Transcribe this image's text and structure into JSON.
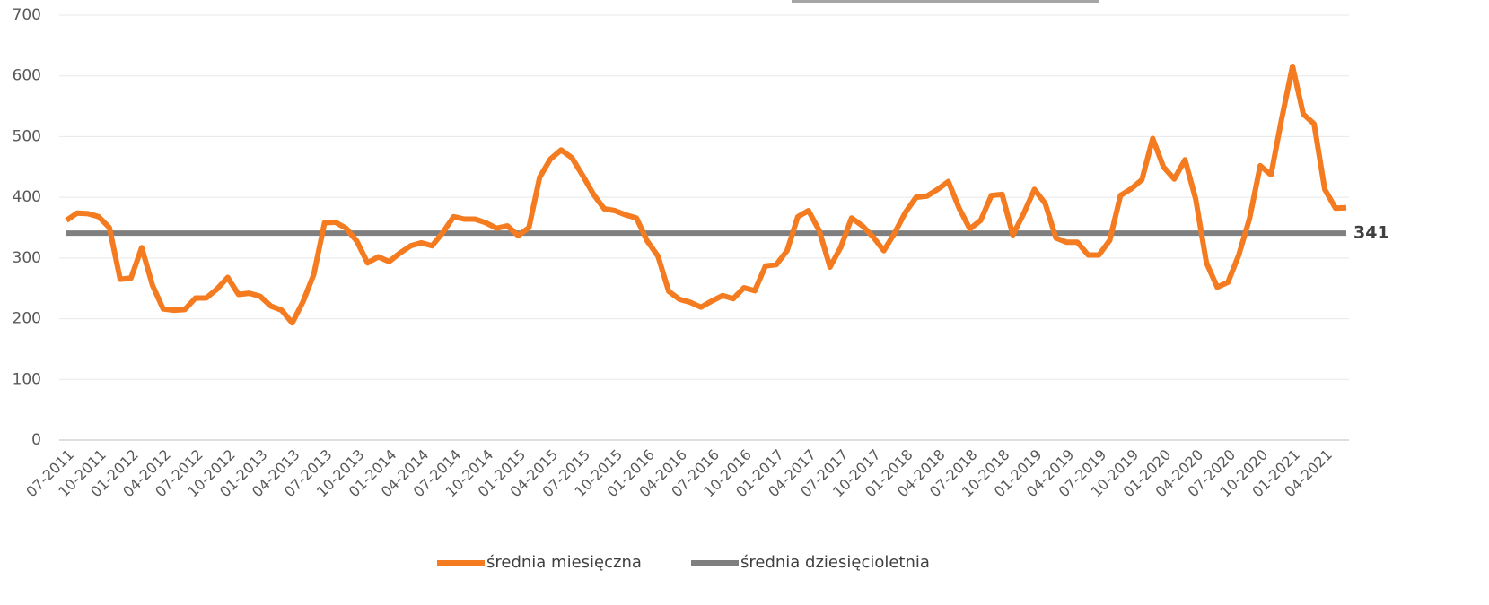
{
  "chart_data": {
    "type": "line",
    "categories": [
      "07-2011",
      null,
      null,
      "10-2011",
      null,
      null,
      "01-2012",
      null,
      null,
      "04-2012",
      null,
      null,
      "07-2012",
      null,
      null,
      "10-2012",
      null,
      null,
      "01-2013",
      null,
      null,
      "04-2013",
      null,
      null,
      "07-2013",
      null,
      null,
      "10-2013",
      null,
      null,
      "01-2014",
      null,
      null,
      "04-2014",
      null,
      null,
      "07-2014",
      null,
      null,
      "10-2014",
      null,
      null,
      "01-2015",
      null,
      null,
      "04-2015",
      null,
      null,
      "07-2015",
      null,
      null,
      "10-2015",
      null,
      null,
      "01-2016",
      null,
      null,
      "04-2016",
      null,
      null,
      "07-2016",
      null,
      null,
      "10-2016",
      null,
      null,
      "01-2017",
      null,
      null,
      "04-2017",
      null,
      null,
      "07-2017",
      null,
      null,
      "10-2017",
      null,
      null,
      "01-2018",
      null,
      null,
      "04-2018",
      null,
      null,
      "07-2018",
      null,
      null,
      "10-2018",
      null,
      null,
      "01-2019",
      null,
      null,
      "04-2019",
      null,
      null,
      "07-2019",
      null,
      null,
      "10-2019",
      null,
      null,
      "01-2020",
      null,
      null,
      "04-2020",
      null,
      null,
      "07-2020",
      null,
      null,
      "10-2020",
      null,
      null,
      "01-2021",
      null,
      null,
      "04-2021",
      null,
      null
    ],
    "series": [
      {
        "name": "średnia miesięczna",
        "color": "#f47b20",
        "values": [
          362,
          374,
          373,
          368,
          350,
          265,
          267,
          317,
          255,
          216,
          214,
          215,
          234,
          234,
          249,
          268,
          240,
          242,
          237,
          221,
          214,
          193,
          228,
          273,
          358,
          359,
          349,
          328,
          292,
          302,
          294,
          308,
          320,
          325,
          320,
          342,
          368,
          364,
          364,
          358,
          349,
          353,
          337,
          350,
          433,
          463,
          478,
          465,
          436,
          405,
          381,
          378,
          371,
          366,
          328,
          303,
          245,
          232,
          227,
          219,
          229,
          238,
          233,
          251,
          246,
          287,
          289,
          312,
          368,
          378,
          345,
          285,
          318,
          366,
          353,
          335,
          312,
          341,
          375,
          400,
          402,
          413,
          426,
          382,
          348,
          362,
          403,
          405,
          338,
          373,
          413,
          390,
          333,
          326,
          326,
          305,
          305,
          329,
          403,
          414,
          429,
          497,
          450,
          430,
          462,
          397,
          292,
          252,
          260,
          305,
          365,
          452,
          437,
          530,
          616,
          537,
          521,
          413,
          382,
          383
        ]
      },
      {
        "name": "średnia dziesięcioletnia",
        "color": "#7f7f7f",
        "values": [
          341,
          341,
          341,
          341,
          341,
          341,
          341,
          341,
          341,
          341,
          341,
          341,
          341,
          341,
          341,
          341,
          341,
          341,
          341,
          341,
          341,
          341,
          341,
          341,
          341,
          341,
          341,
          341,
          341,
          341,
          341,
          341,
          341,
          341,
          341,
          341,
          341,
          341,
          341,
          341,
          341,
          341,
          341,
          341,
          341,
          341,
          341,
          341,
          341,
          341,
          341,
          341,
          341,
          341,
          341,
          341,
          341,
          341,
          341,
          341,
          341,
          341,
          341,
          341,
          341,
          341,
          341,
          341,
          341,
          341,
          341,
          341,
          341,
          341,
          341,
          341,
          341,
          341,
          341,
          341,
          341,
          341,
          341,
          341,
          341,
          341,
          341,
          341,
          341,
          341,
          341,
          341,
          341,
          341,
          341,
          341,
          341,
          341,
          341,
          341,
          341,
          341,
          341,
          341,
          341,
          341,
          341,
          341,
          341,
          341,
          341,
          341,
          341,
          341,
          341,
          341,
          341,
          341,
          341,
          341
        ]
      }
    ],
    "ylim": [
      0,
      700
    ],
    "yticks": [
      0,
      100,
      200,
      300,
      400,
      500,
      600,
      700
    ],
    "grid": true,
    "legend": "bottom"
  }
}
